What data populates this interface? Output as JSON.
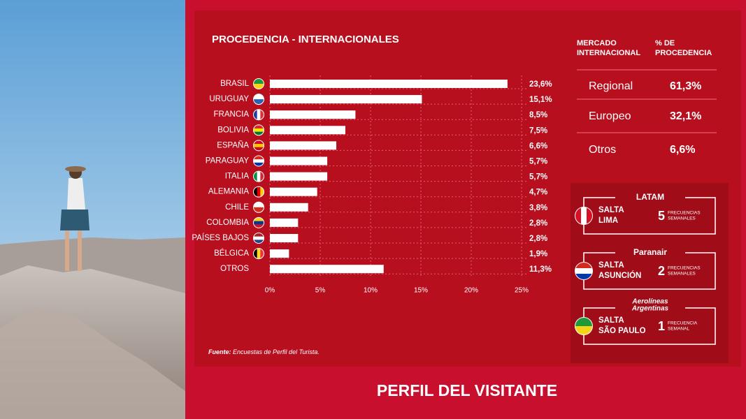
{
  "chart_data": {
    "type": "bar",
    "orientation": "horizontal",
    "title": "PROCEDENCIA - INTERNACIONALES",
    "categories": [
      "BRASIL",
      "URUGUAY",
      "FRANCIA",
      "BOLIVIA",
      "ESPAÑA",
      "PARAGUAY",
      "ITALIA",
      "ALEMANIA",
      "CHILE",
      "COLOMBIA",
      "PAÍSES BAJOS",
      "BÉLGICA",
      "OTROS"
    ],
    "values": [
      23.6,
      15.1,
      8.5,
      7.5,
      6.6,
      5.7,
      5.7,
      4.7,
      3.8,
      2.8,
      2.8,
      1.9,
      11.3
    ],
    "value_labels": [
      "23,6%",
      "15,1%",
      "8,5%",
      "7,5%",
      "6,6%",
      "5,7%",
      "5,7%",
      "4,7%",
      "3,8%",
      "2,8%",
      "2,8%",
      "1,9%",
      "11,3%"
    ],
    "color": "#ffffff",
    "xlim": [
      0,
      25
    ],
    "xticks": [
      {
        "value": 0,
        "label": "0%"
      },
      {
        "value": 5,
        "label": "5%"
      },
      {
        "value": 10,
        "label": "10%"
      },
      {
        "value": 15,
        "label": "15%"
      },
      {
        "value": 20,
        "label": "20%"
      },
      {
        "value": 25,
        "label": "25%"
      }
    ],
    "grid": true
  },
  "source": {
    "label": "Fuente:",
    "text": "Encuestas de Perfil del Turista."
  },
  "table": {
    "header": [
      [
        "MERCADO",
        "INTERNACIONAL"
      ],
      [
        "% DE",
        "PROCEDENCIA"
      ]
    ],
    "rows": [
      [
        "Regional",
        "61,3%"
      ],
      [
        "Europeo",
        "32,1%"
      ],
      [
        "Otros",
        "6,6%"
      ]
    ]
  },
  "flights": [
    {
      "airline": [
        "LATAM"
      ],
      "origin": "SALTA",
      "destination": "LIMA",
      "frequency": "5",
      "frequency_label": [
        "FRECUENCIAS",
        "SEMANALES"
      ]
    },
    {
      "airline": [
        "Paranair"
      ],
      "origin": "SALTA",
      "destination": "ASUNCIÓN",
      "frequency": "2",
      "frequency_label": [
        "FRECUENCIAS",
        "SEMANALES"
      ]
    },
    {
      "airline": [
        "Aerolíneas",
        "Argentinas"
      ],
      "origin": "SALTA",
      "destination": "SÃO PAULO",
      "frequency": "1",
      "frequency_label": [
        "FRECUENCIA",
        "SEMANAL"
      ]
    }
  ],
  "footer": {
    "title": "PERFIL DEL VISITANTE"
  }
}
